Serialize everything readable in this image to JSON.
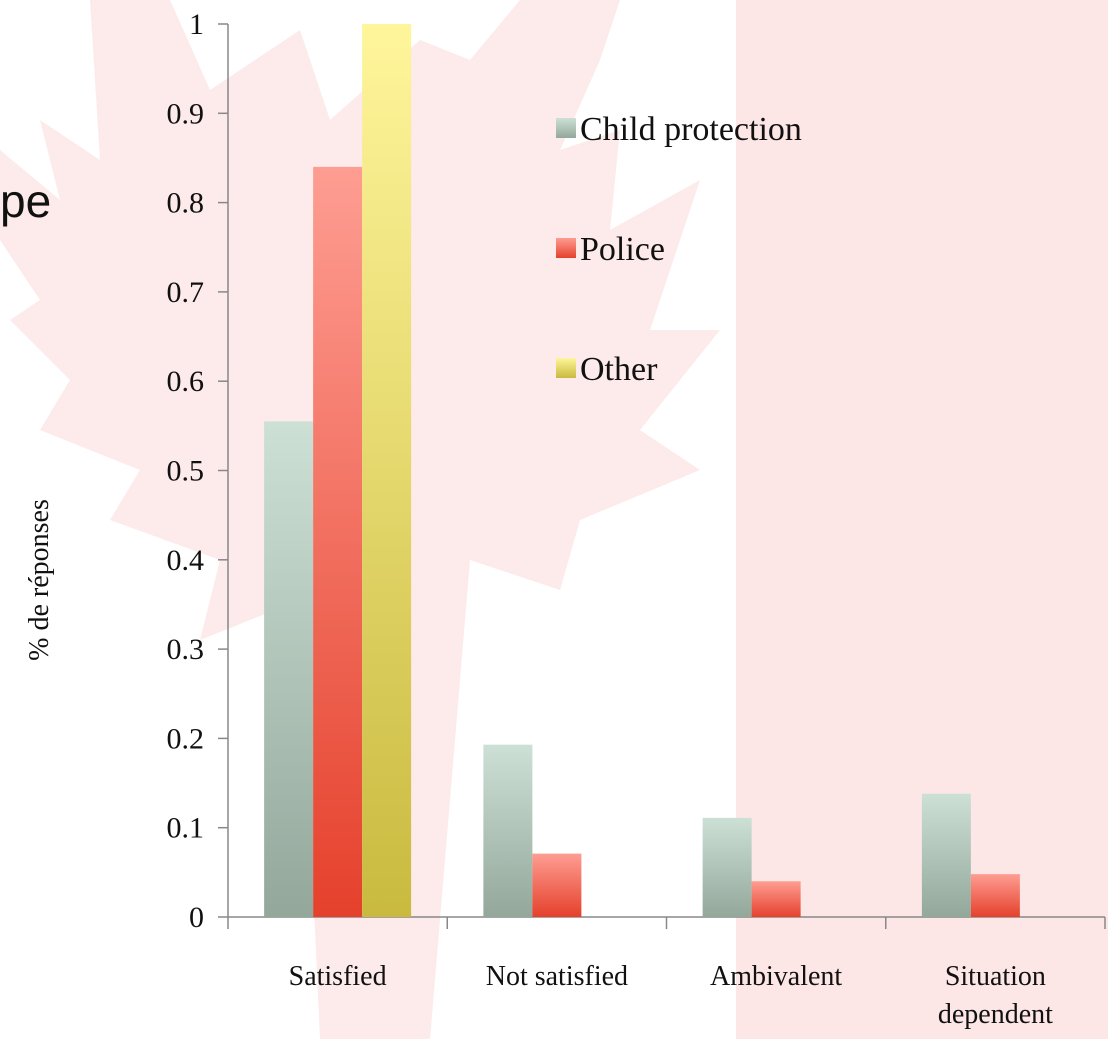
{
  "background": {
    "band_color": "#fde6e6",
    "leaf_color": "#fdeaea",
    "accent": "#e8402b"
  },
  "partial_title": "pe",
  "chart_data": {
    "type": "bar",
    "categories": [
      "Satisfied",
      "Not satisfied",
      "Ambivalent",
      "Situation dependent"
    ],
    "series": [
      {
        "name": "Child protection",
        "values": [
          0.555,
          0.193,
          0.111,
          0.138
        ],
        "color_top": "#cde0d6",
        "color_bottom": "#93a89b",
        "icon": "legend-swatch"
      },
      {
        "name": "Police",
        "values": [
          0.84,
          0.071,
          0.04,
          0.048
        ],
        "color_top": "#fe9d92",
        "color_bottom": "#e5412c",
        "icon": "legend-swatch"
      },
      {
        "name": "Other",
        "values": [
          1.0,
          0.0,
          0.0,
          0.0
        ],
        "color_top": "#fff59b",
        "color_bottom": "#c9ba3f",
        "icon": "legend-swatch"
      }
    ],
    "title": "",
    "xlabel": "",
    "ylabel": "% de réponses",
    "ylim": [
      0,
      1
    ],
    "yticks": [
      0,
      0.1,
      0.2,
      0.3,
      0.4,
      0.5,
      0.6,
      0.7,
      0.8,
      0.9,
      1
    ],
    "ytick_labels": [
      "0",
      "0.1",
      "0.2",
      "0.3",
      "0.4",
      "0.5",
      "0.6",
      "0.7",
      "0.8",
      "0.9",
      "1"
    ],
    "grid": false,
    "legend_position": "top-right"
  }
}
